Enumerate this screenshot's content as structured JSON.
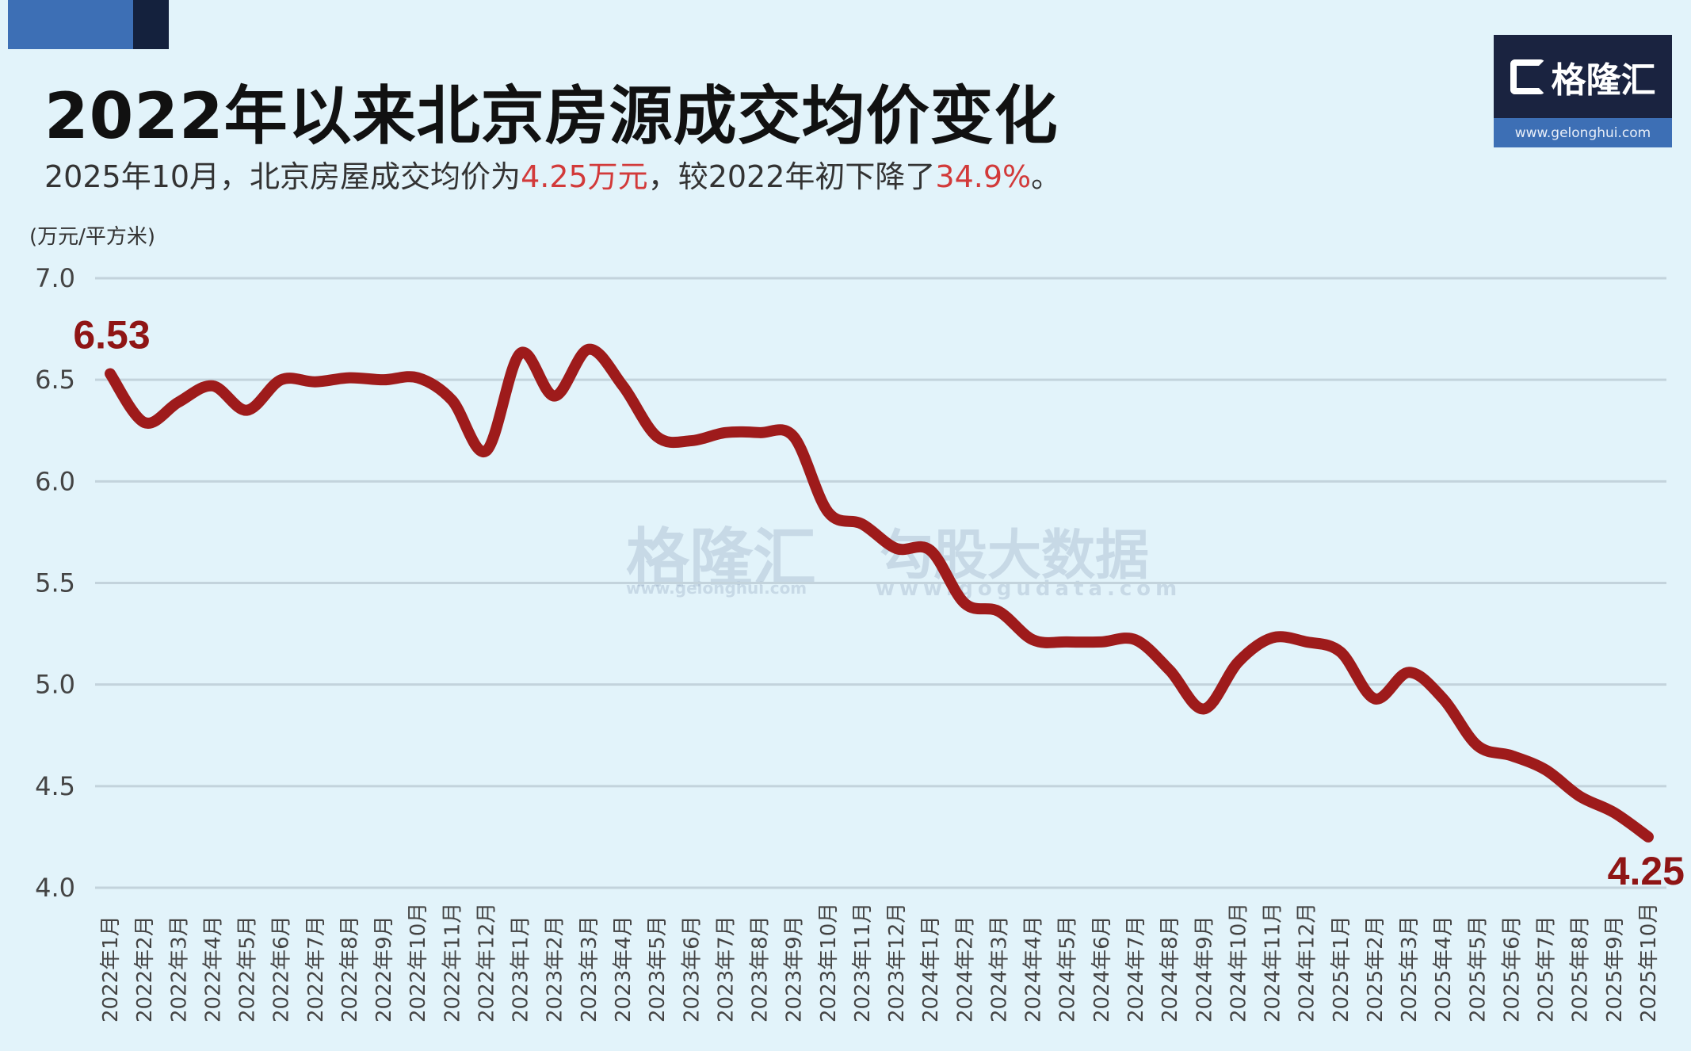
{
  "title": "2022年以来北京房源成交均价变化",
  "subtitle": {
    "part1": "2025年10月，北京房屋成交均价为",
    "hl1": "4.25万元",
    "part2": "，较2022年初下降了",
    "hl2": "34.9%",
    "part3": "。"
  },
  "logo": {
    "name": "格隆汇",
    "url": "www.gelonghui.com"
  },
  "watermark": {
    "left": "格隆汇",
    "left_url": "www.gelonghui.com",
    "right": "勾股大数据",
    "right_url": "www.gogudata.com"
  },
  "colors": {
    "line": "#9e1b1b",
    "accent_text": "#d23a3a",
    "background": "#e2f3fa",
    "grid": "#c3d3dc"
  },
  "chart_data": {
    "type": "line",
    "ylabel": "(万元/平方米)",
    "ylim": [
      4.0,
      7.0
    ],
    "yticks": [
      "7.0",
      "6.5",
      "6.0",
      "5.5",
      "5.0",
      "4.5",
      "4.0"
    ],
    "grid": true,
    "categories": [
      "2022年1月",
      "2022年2月",
      "2022年3月",
      "2022年4月",
      "2022年5月",
      "2022年6月",
      "2022年7月",
      "2022年8月",
      "2022年9月",
      "2022年10月",
      "2022年11月",
      "2022年12月",
      "2023年1月",
      "2023年2月",
      "2023年3月",
      "2023年4月",
      "2023年5月",
      "2023年6月",
      "2023年7月",
      "2023年8月",
      "2023年9月",
      "2023年10月",
      "2023年11月",
      "2023年12月",
      "2024年1月",
      "2024年2月",
      "2024年3月",
      "2024年4月",
      "2024年5月",
      "2024年6月",
      "2024年7月",
      "2024年8月",
      "2024年9月",
      "2024年10月",
      "2024年11月",
      "2024年12月",
      "2025年1月",
      "2025年2月",
      "2025年3月",
      "2025年4月",
      "2025年5月",
      "2025年6月",
      "2025年7月",
      "2025年8月",
      "2025年9月",
      "2025年10月"
    ],
    "values": [
      6.53,
      6.29,
      6.39,
      6.47,
      6.35,
      6.5,
      6.49,
      6.51,
      6.5,
      6.51,
      6.4,
      6.15,
      6.63,
      6.42,
      6.65,
      6.47,
      6.22,
      6.2,
      6.24,
      6.24,
      6.22,
      5.85,
      5.79,
      5.67,
      5.66,
      5.4,
      5.36,
      5.22,
      5.21,
      5.21,
      5.22,
      5.07,
      4.88,
      5.11,
      5.23,
      5.21,
      5.16,
      4.93,
      5.06,
      4.93,
      4.7,
      4.65,
      4.58,
      4.45,
      4.37,
      4.25
    ],
    "annotations": [
      {
        "label": "6.53",
        "category": "2022年1月"
      },
      {
        "label": "4.25",
        "category": "2025年10月"
      }
    ]
  }
}
